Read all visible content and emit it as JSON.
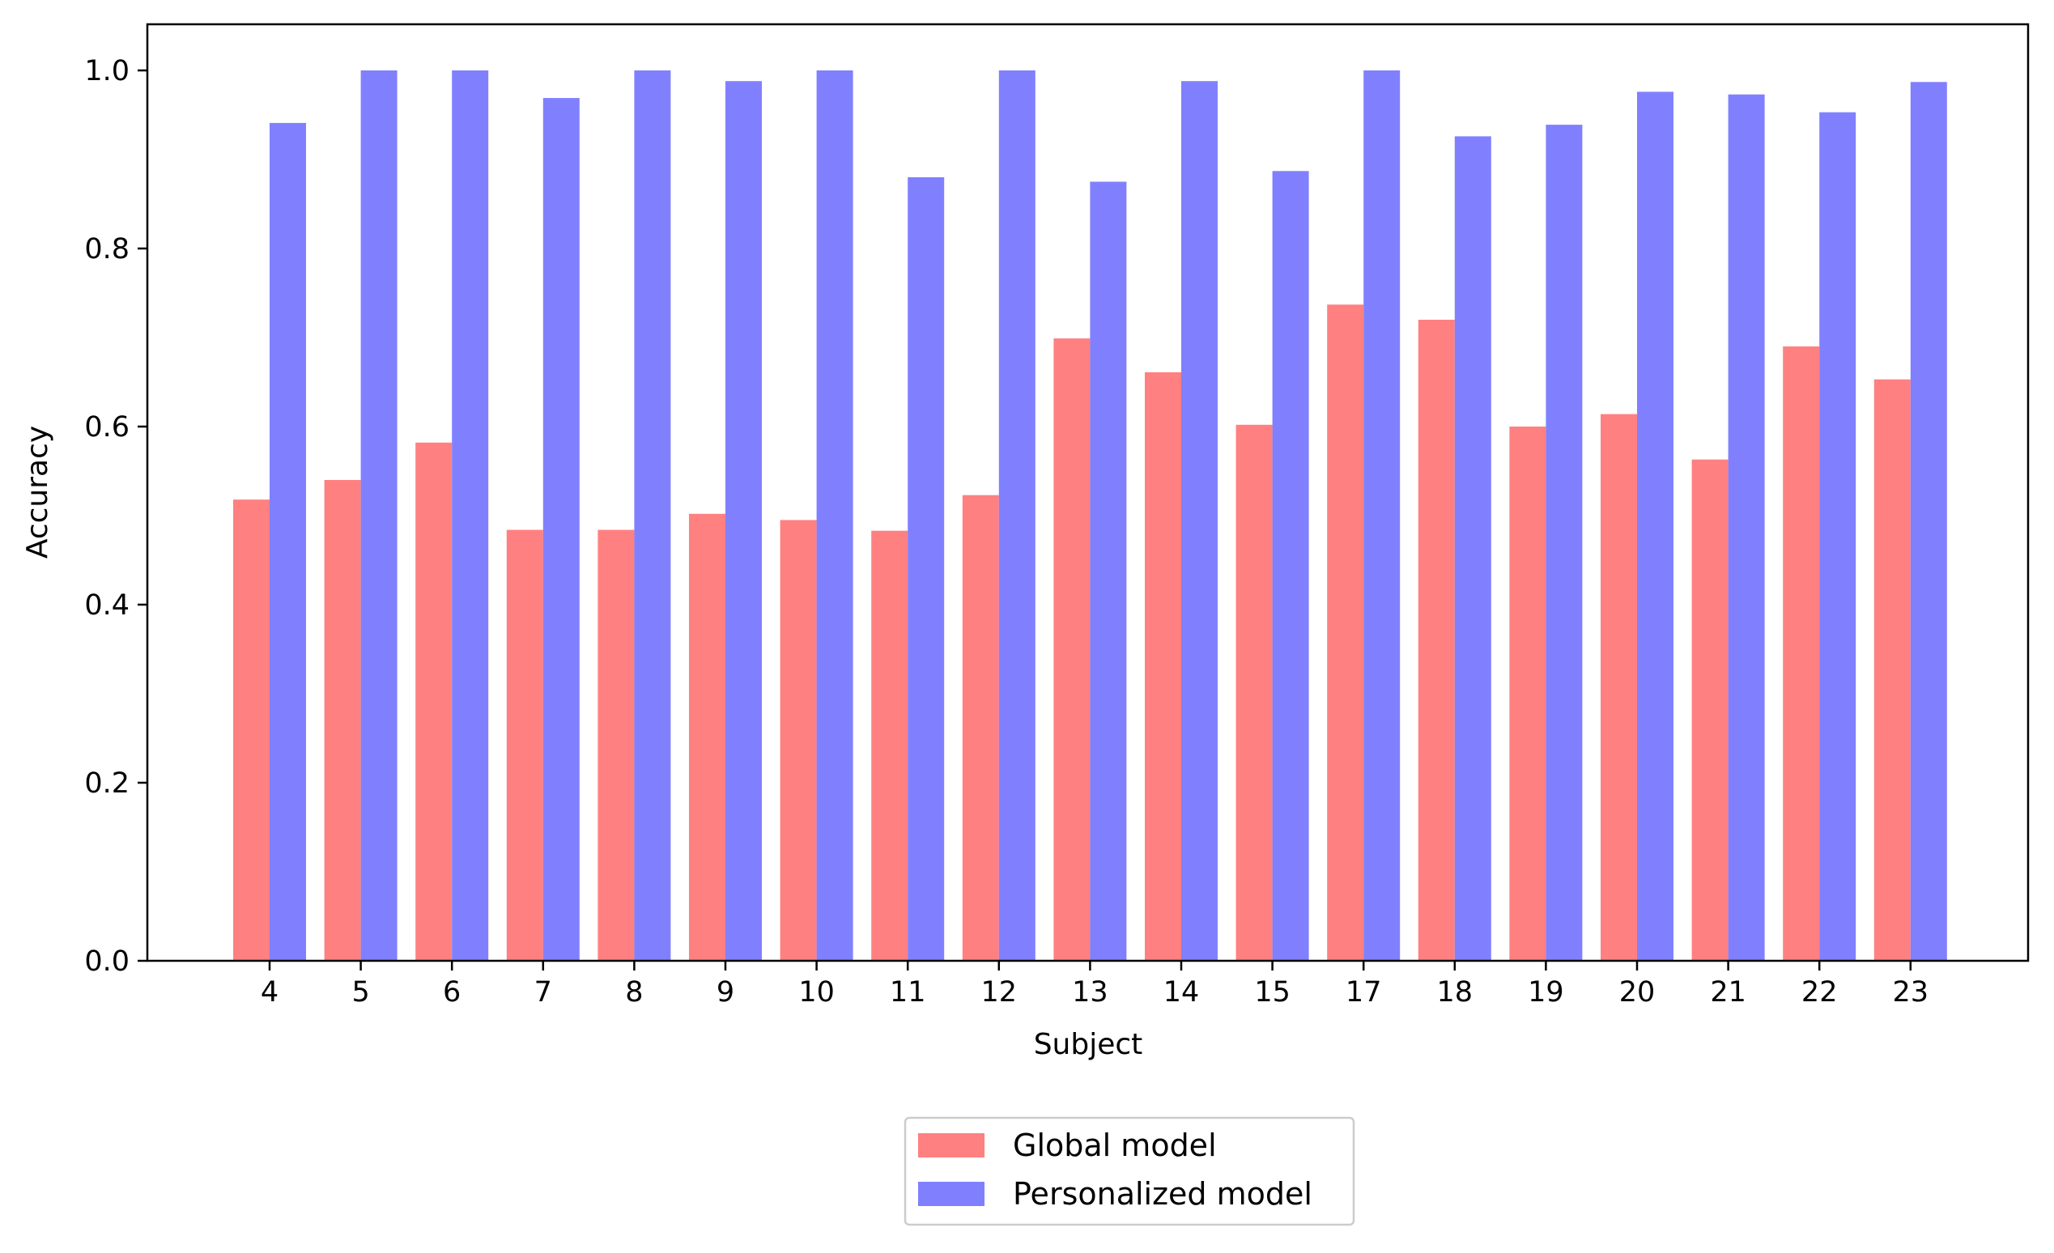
{
  "chart_data": {
    "type": "bar",
    "title": "",
    "xlabel": "Subject",
    "ylabel": "Accuracy",
    "categories": [
      "4",
      "5",
      "6",
      "7",
      "8",
      "9",
      "10",
      "11",
      "12",
      "13",
      "14",
      "15",
      "17",
      "18",
      "19",
      "20",
      "21",
      "22",
      "23"
    ],
    "series": [
      {
        "name": "Global model",
        "color": "#ff8080",
        "values": [
          0.518,
          0.54,
          0.582,
          0.484,
          0.484,
          0.502,
          0.495,
          0.483,
          0.523,
          0.699,
          0.661,
          0.602,
          0.737,
          0.72,
          0.6,
          0.614,
          0.563,
          0.69,
          0.653
        ]
      },
      {
        "name": "Personalized model",
        "color": "#8080ff",
        "values": [
          0.941,
          1.0,
          1.0,
          0.969,
          1.0,
          0.988,
          1.0,
          0.88,
          1.0,
          0.875,
          0.988,
          0.887,
          1.0,
          0.926,
          0.939,
          0.976,
          0.973,
          0.953,
          0.987
        ]
      }
    ],
    "ylim": [
      0,
      1.05
    ],
    "yticks": [
      0.0,
      0.2,
      0.4,
      0.6,
      0.8,
      1.0
    ],
    "ytick_labels": [
      "0.0",
      "0.2",
      "0.4",
      "0.6",
      "0.8",
      "1.0"
    ],
    "grid": false,
    "legend_position": "bottom-center, below plot"
  }
}
